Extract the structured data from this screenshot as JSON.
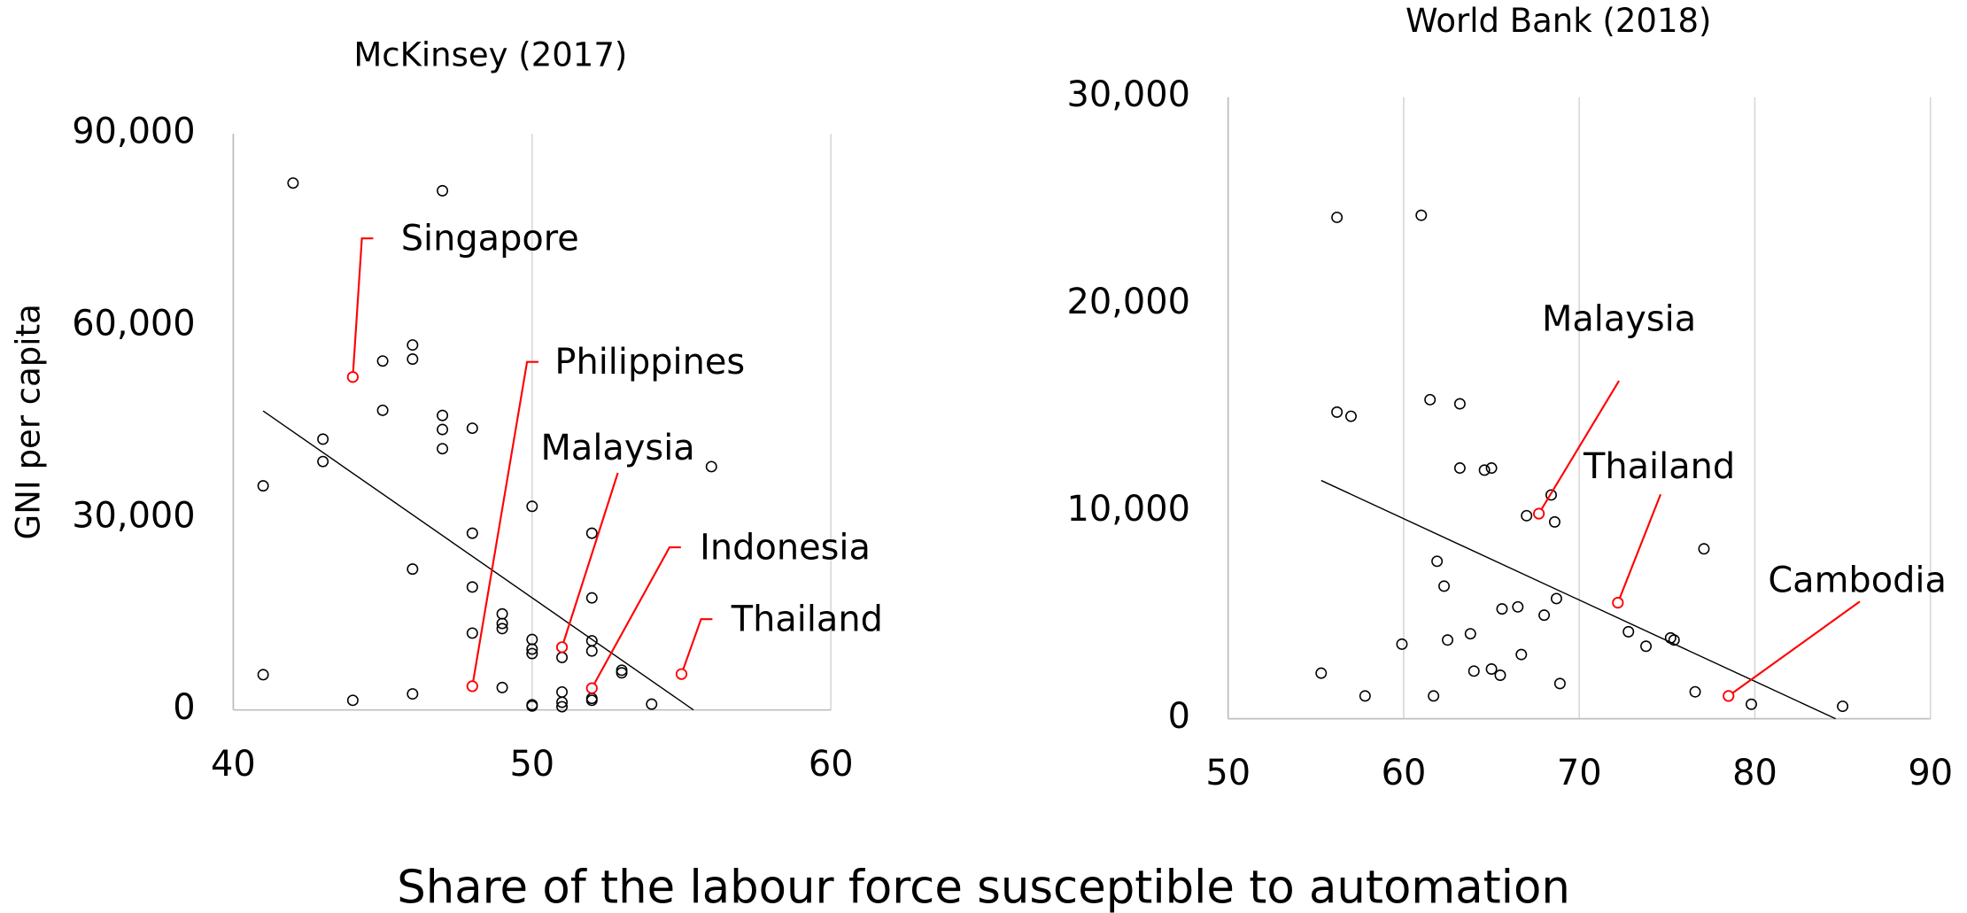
{
  "xlabel": "Share of the labour force susceptible to automation",
  "chart_data": [
    {
      "type": "scatter",
      "title": "McKinsey (2017)",
      "ylabel": "GNI per capita",
      "xlim": [
        40,
        60
      ],
      "ylim": [
        0,
        90000
      ],
      "xticks": [
        40,
        50,
        60
      ],
      "yticks": [
        0,
        {
          "value": 30000,
          "label": "30,000"
        },
        {
          "value": 60000,
          "label": "60,000"
        },
        {
          "value": 90000,
          "label": "90,000"
        }
      ],
      "grid": true,
      "color": "#000000",
      "highlight_color": "#ff0000",
      "x": [
        42,
        47,
        46,
        46,
        45,
        45,
        47,
        47,
        48,
        47,
        43,
        43,
        41,
        56,
        50,
        48,
        52,
        46,
        48,
        52,
        49,
        49,
        49,
        48,
        50,
        52,
        50,
        50,
        51,
        52,
        53,
        53,
        41,
        49,
        51,
        52,
        52,
        46,
        44,
        50,
        50,
        51,
        51,
        54
      ],
      "y": [
        82300,
        81100,
        57000,
        54800,
        54500,
        46800,
        46000,
        43800,
        44000,
        40800,
        42300,
        38800,
        35000,
        38000,
        31800,
        27600,
        27600,
        22000,
        19200,
        17500,
        15000,
        13500,
        12700,
        12000,
        11000,
        10800,
        9500,
        8800,
        8200,
        9200,
        6200,
        5800,
        5500,
        3500,
        2800,
        1800,
        1500,
        2500,
        1500,
        800,
        600,
        1200,
        500,
        900
      ],
      "highlighted": [
        {
          "label": "Singapore",
          "x": 44,
          "y": 52000
        },
        {
          "label": "Philippines",
          "x": 48,
          "y": 3700
        },
        {
          "label": "Malaysia",
          "x": 51,
          "y": 9800
        },
        {
          "label": "Indonesia",
          "x": 52,
          "y": 3400
        },
        {
          "label": "Thailand",
          "x": 55,
          "y": 5600
        }
      ],
      "trendline": {
        "x": [
          41,
          55.4
        ],
        "y": [
          46700,
          0
        ]
      }
    },
    {
      "type": "scatter",
      "title": "World Bank (2018)",
      "xlim": [
        50,
        90
      ],
      "ylim": [
        0,
        30000
      ],
      "xticks": [
        50,
        60,
        70,
        80,
        90
      ],
      "yticks": [
        0,
        {
          "value": 10000,
          "label": "10,000"
        },
        {
          "value": 20000,
          "label": "20,000"
        },
        {
          "value": 30000,
          "label": "30,000"
        }
      ],
      "grid": true,
      "color": "#000000",
      "highlight_color": "#ff0000",
      "x": [
        56.2,
        61,
        56.2,
        57,
        61.5,
        63.2,
        63.2,
        64.6,
        65,
        68.4,
        67,
        68.6,
        77.1,
        61.9,
        62.3,
        66.5,
        65.6,
        68.7,
        68,
        72.8,
        75.2,
        75.4,
        73.8,
        63.8,
        62.5,
        59.9,
        66.7,
        64,
        65,
        65.5,
        55.3,
        68.9,
        57.8,
        61.7,
        76.6,
        79.8,
        85
      ],
      "y": [
        24200,
        24300,
        14800,
        14600,
        15400,
        15200,
        12100,
        12000,
        12100,
        10800,
        9800,
        9500,
        8200,
        7600,
        6400,
        5400,
        5300,
        5800,
        5000,
        4200,
        3900,
        3800,
        3500,
        4100,
        3800,
        3600,
        3100,
        2300,
        2400,
        2100,
        2200,
        1700,
        1100,
        1100,
        1300,
        700,
        600
      ],
      "highlighted": [
        {
          "label": "Malaysia",
          "x": 67.7,
          "y": 9900
        },
        {
          "label": "Thailand",
          "x": 72.2,
          "y": 5600
        },
        {
          "label": "Cambodia",
          "x": 78.5,
          "y": 1100
        }
      ],
      "trendline": {
        "x": [
          55.3,
          84.6
        ],
        "y": [
          11500,
          0
        ]
      }
    }
  ]
}
